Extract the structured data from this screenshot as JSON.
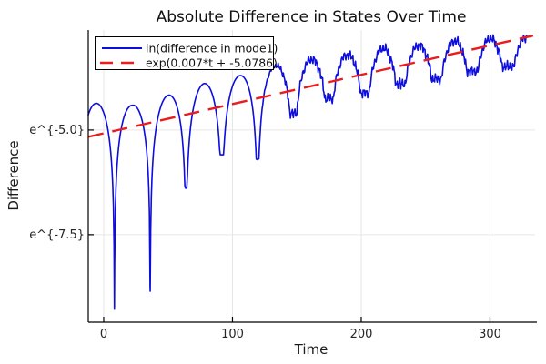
{
  "chart_data": {
    "type": "line",
    "title": "Absolute Difference in States Over Time",
    "xlabel": "Time",
    "ylabel": "Difference",
    "grid": true,
    "legend_position": "top-left",
    "background_color": "#ffffff",
    "grid_color": "#e6e6e6",
    "axis_color": "#000000",
    "xlim": [
      -12,
      335
    ],
    "ylim_ln": [
      -9.59,
      -2.61
    ],
    "x_ticks": [
      {
        "t": 0,
        "label": "0"
      },
      {
        "t": 100,
        "label": "100"
      },
      {
        "t": 200,
        "label": "200"
      },
      {
        "t": 300,
        "label": "300"
      }
    ],
    "y_ticks": [
      {
        "v": -5.0,
        "label": "e^{-5.0}"
      },
      {
        "v": -7.5,
        "label": "e^{-7.5}"
      }
    ],
    "series": [
      {
        "name": "ln(difference in mode1)",
        "color": "#0d0ddd",
        "style": "solid",
        "width": 1.6,
        "model": {
          "comment": "ln|difference| oscillation: sharp nulls every ~27.8 time units, rising envelope, noisy after t~120",
          "t_start": -12,
          "t_end": 328.5,
          "dt": 0.5,
          "first_null_t": 8.3,
          "null_period": 27.8,
          "null_bottoms": [
            -9.28,
            -8.85,
            -6.39,
            -5.59,
            -5.7,
            -4.6,
            -4.25,
            -4.11,
            -3.89,
            -3.78,
            -3.59,
            -3.48
          ],
          "envelope_points": [
            [
              -12,
              -4.35
            ],
            [
              22.2,
              -4.41
            ],
            [
              50,
              -4.17
            ],
            [
              77.8,
              -3.89
            ],
            [
              105.6,
              -3.7
            ],
            [
              133.4,
              -3.46
            ],
            [
              161.2,
              -3.31
            ],
            [
              189,
              -3.2
            ],
            [
              216.8,
              -3.05
            ],
            [
              244.6,
              -2.98
            ],
            [
              272.4,
              -2.87
            ],
            [
              300.2,
              -2.82
            ],
            [
              328.5,
              -2.78
            ]
          ],
          "noise": {
            "start_t": 115,
            "ramp": 35,
            "max_amp": 0.15,
            "components": [
              [
                0.5,
                2.93,
                0.5
              ],
              [
                0.3,
                6.17,
                1.9
              ],
              [
                0.2,
                13.7,
                4.2
              ]
            ]
          }
        }
      },
      {
        "name": "exp(0.007*t + -5.0786)",
        "color": "#ea1c1c",
        "style": "dashed",
        "width": 2.4,
        "dash": "17 10",
        "line": {
          "slope": 0.007,
          "intercept": -5.0786,
          "t_start": -12,
          "t_end": 333.5
        }
      }
    ]
  }
}
